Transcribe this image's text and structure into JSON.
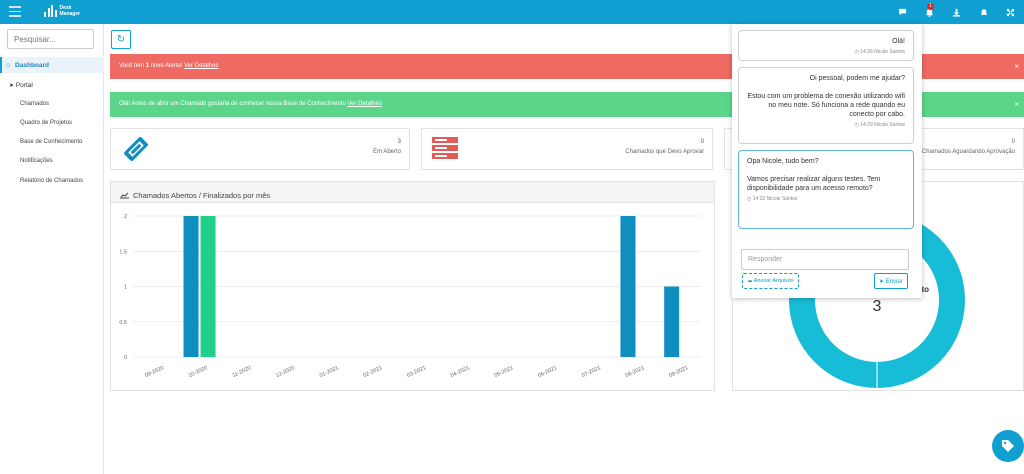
{
  "topbar": {
    "logo_line1": "Desk",
    "logo_line2": "Manager",
    "notifications_badge": "1",
    "icons": [
      "chat-icon",
      "bell-notification-icon",
      "download-icon",
      "alert-bell-icon",
      "fullscreen-icon"
    ]
  },
  "sidebar": {
    "search_placeholder": "Pesquisar...",
    "dashboard": "Dashboard",
    "portal": "Portal",
    "items": [
      "Chamados",
      "Quadro de Projetos",
      "Base de Conhecimento",
      "Notificações",
      "Relatório de Chamados"
    ]
  },
  "alerts": {
    "red_prefix": "Você tem ",
    "red_count": "1",
    "red_suffix": " novo Alerta! ",
    "red_link": "Ver Detalhes",
    "green_text": "Olá! Antes de abrir um Chamado gostaria de conhecer nossa Base de Conhecimento ",
    "green_link": "Ver Detalhes",
    "close": "×"
  },
  "cards": [
    {
      "value": "3",
      "label": "Em Aberto"
    },
    {
      "value": "0",
      "label": "Chamados que Devo Aprovar"
    },
    {
      "value": "0",
      "label": "Chamados Aguardando Aprovação"
    }
  ],
  "chart_panel": {
    "title": "Chamados Abertos / Finalizados por mês"
  },
  "chart_data": {
    "type": "bar",
    "categories": [
      "09-2020",
      "10-2020",
      "11-2020",
      "12-2020",
      "01-2021",
      "02-2021",
      "03-2021",
      "04-2021",
      "05-2021",
      "06-2021",
      "07-2021",
      "08-2021",
      "09-2021"
    ],
    "series": [
      {
        "values": [
          0,
          2,
          0,
          0,
          0,
          0,
          0,
          0,
          0,
          0,
          0,
          2,
          1
        ],
        "color": "#0f8fc0"
      },
      {
        "values": [
          0,
          2,
          0,
          0,
          0,
          0,
          0,
          0,
          0,
          0,
          0,
          0,
          0
        ],
        "color": "#1fcf8a"
      }
    ],
    "yticks": [
      "0",
      "0.5",
      "1",
      "1.5",
      "2"
    ],
    "ylim": [
      0,
      2
    ]
  },
  "donut": {
    "label_partial": "rto",
    "value": "3",
    "color": "#17bcd6"
  },
  "chat": {
    "messages": [
      {
        "side": "me",
        "text": "Olá!",
        "meta": "14:26 Nicole Santos"
      },
      {
        "side": "me",
        "text": "Oi pessoal, podem me ajudar?",
        "text2": "Estou com um problema de conexão utilizando wifi no meu note. Só funciona a rede quando eu conecto por cabo.",
        "meta": "14:29 Nicole Santos"
      },
      {
        "side": "them",
        "text": "Opa Nicole, tudo bem?",
        "text2": "Vamos precisar realizar alguns testes. Tem disponibilidade para um acesso remoto?",
        "meta": "14:32 Nicole Santos"
      }
    ],
    "reply_placeholder": "Responder",
    "attach_label": "Anexar Arquivos",
    "send_label": "Enviar"
  }
}
